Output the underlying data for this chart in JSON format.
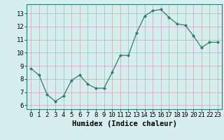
{
  "x": [
    0,
    1,
    2,
    3,
    4,
    5,
    6,
    7,
    8,
    9,
    10,
    11,
    12,
    13,
    14,
    15,
    16,
    17,
    18,
    19,
    20,
    21,
    22,
    23
  ],
  "y": [
    8.8,
    8.3,
    6.8,
    6.3,
    6.7,
    7.9,
    8.3,
    7.6,
    7.3,
    7.3,
    8.5,
    9.8,
    9.8,
    11.5,
    12.8,
    13.2,
    13.3,
    12.7,
    12.2,
    12.1,
    11.3,
    10.4,
    10.8,
    10.8
  ],
  "line_color": "#2e7d6e",
  "marker": "D",
  "marker_size": 2,
  "bg_color": "#d6eeee",
  "grid_color": "#b8d8d8",
  "xlabel": "Humidex (Indice chaleur)",
  "xlim": [
    -0.5,
    23.5
  ],
  "ylim": [
    5.7,
    13.7
  ],
  "yticks": [
    6,
    7,
    8,
    9,
    10,
    11,
    12,
    13
  ],
  "xticks": [
    0,
    1,
    2,
    3,
    4,
    5,
    6,
    7,
    8,
    9,
    10,
    11,
    12,
    13,
    14,
    15,
    16,
    17,
    18,
    19,
    20,
    21,
    22,
    23
  ],
  "font_size_label": 7.5,
  "font_size_tick": 6.5
}
